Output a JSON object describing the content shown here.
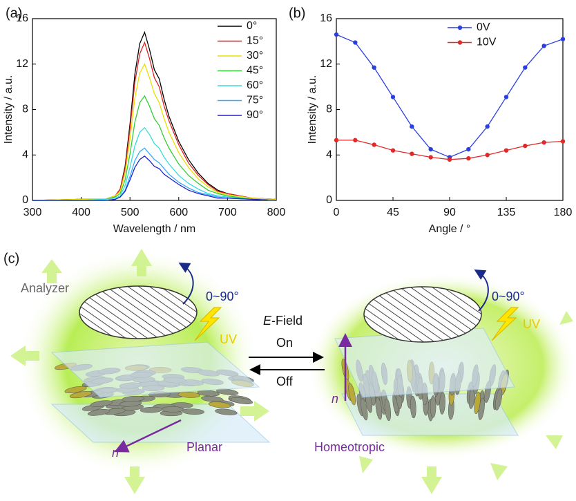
{
  "chart_data": [
    {
      "type": "line",
      "panel_label": "(a)",
      "x_label": "Wavelength / nm",
      "y_label": "Intensity / a.u.",
      "x": [
        300,
        400,
        450,
        470,
        480,
        490,
        500,
        510,
        520,
        530,
        540,
        550,
        560,
        570,
        580,
        600,
        620,
        640,
        660,
        680,
        700,
        750,
        800
      ],
      "series": [
        {
          "name": "0°",
          "color": "#000000",
          "values": [
            0,
            0.1,
            0.1,
            0.4,
            1.0,
            3.0,
            6.7,
            11.1,
            13.8,
            14.8,
            13.3,
            11.5,
            10.7,
            8.9,
            7.4,
            5.2,
            3.6,
            2.4,
            1.5,
            0.9,
            0.6,
            0.2,
            0.1
          ]
        },
        {
          "name": "15°",
          "color": "#e02020",
          "values": [
            0,
            0.1,
            0.1,
            0.4,
            1.0,
            2.8,
            6.3,
            10.4,
            12.9,
            13.9,
            12.5,
            10.8,
            10.0,
            8.3,
            7.0,
            4.9,
            3.3,
            2.2,
            1.4,
            0.8,
            0.6,
            0.2,
            0.1
          ]
        },
        {
          "name": "30°",
          "color": "#e8e000",
          "values": [
            0,
            0.1,
            0.1,
            0.4,
            0.8,
            2.4,
            5.4,
            9.0,
            11.2,
            12.0,
            10.8,
            9.4,
            8.6,
            7.2,
            6.0,
            4.2,
            2.9,
            1.9,
            1.2,
            0.7,
            0.5,
            0.2,
            0.1
          ]
        },
        {
          "name": "45°",
          "color": "#33cc33",
          "values": [
            0,
            0,
            0.1,
            0.3,
            0.6,
            1.8,
            4.1,
            6.9,
            8.6,
            9.2,
            8.3,
            7.2,
            6.6,
            5.5,
            4.6,
            3.2,
            2.2,
            1.5,
            0.9,
            0.6,
            0.4,
            0.1,
            0
          ]
        },
        {
          "name": "60°",
          "color": "#33dddd",
          "values": [
            0,
            0,
            0.1,
            0.2,
            0.4,
            1.3,
            2.9,
            4.8,
            6.0,
            6.4,
            5.8,
            5.0,
            4.6,
            3.8,
            3.2,
            2.2,
            1.5,
            1.0,
            0.6,
            0.4,
            0.3,
            0.1,
            0
          ]
        },
        {
          "name": "75°",
          "color": "#33aaff",
          "values": [
            0,
            0,
            0,
            0.1,
            0.3,
            0.9,
            2.1,
            3.5,
            4.3,
            4.6,
            4.1,
            3.6,
            3.3,
            2.8,
            2.3,
            1.6,
            1.1,
            0.7,
            0.5,
            0.3,
            0.2,
            0.1,
            0
          ]
        },
        {
          "name": "90°",
          "color": "#2222cc",
          "values": [
            0,
            0,
            0,
            0.1,
            0.3,
            0.8,
            1.8,
            2.9,
            3.6,
            3.9,
            3.5,
            3.0,
            2.8,
            2.3,
            2.0,
            1.4,
            0.9,
            0.6,
            0.4,
            0.2,
            0.2,
            0.1,
            0
          ]
        }
      ],
      "xlim": [
        300,
        800
      ],
      "xticks": [
        300,
        400,
        500,
        600,
        700,
        800
      ],
      "ylim": [
        0,
        16
      ],
      "yticks": [
        0,
        4,
        8,
        12,
        16
      ],
      "legend": "upper right"
    },
    {
      "type": "line",
      "markers": true,
      "panel_label": "(b)",
      "x_label": "Angle / °",
      "y_label": "Intensity / a.u.",
      "x": [
        0,
        15,
        30,
        45,
        60,
        75,
        90,
        105,
        120,
        135,
        150,
        165,
        180
      ],
      "series": [
        {
          "name": "0V",
          "color": "#2a3fe0",
          "values": [
            14.6,
            13.9,
            11.7,
            9.1,
            6.5,
            4.5,
            3.8,
            4.5,
            6.5,
            9.1,
            11.7,
            13.6,
            14.2
          ]
        },
        {
          "name": "10V",
          "color": "#e02a2a",
          "values": [
            5.3,
            5.3,
            4.9,
            4.4,
            4.1,
            3.8,
            3.6,
            3.7,
            4.0,
            4.4,
            4.8,
            5.1,
            5.2
          ]
        }
      ],
      "xlim": [
        0,
        180
      ],
      "xticks": [
        0,
        45,
        90,
        135,
        180
      ],
      "ylim": [
        0,
        16
      ],
      "yticks": [
        0,
        4,
        8,
        12,
        16
      ],
      "legend": "upper right"
    }
  ],
  "diagram": {
    "panel_label": "(c)",
    "analyzer": "Analyzer",
    "rotation_left": "0~90°",
    "rotation_right": "0~90°",
    "uv_left": "UV",
    "uv_right": "UV",
    "field_symbol": "E",
    "field_text": "-Field",
    "on": "On",
    "off": "Off",
    "director_left": "n",
    "director_right": "n",
    "planar": "Planar",
    "homeotropic": "Homeotropic"
  }
}
